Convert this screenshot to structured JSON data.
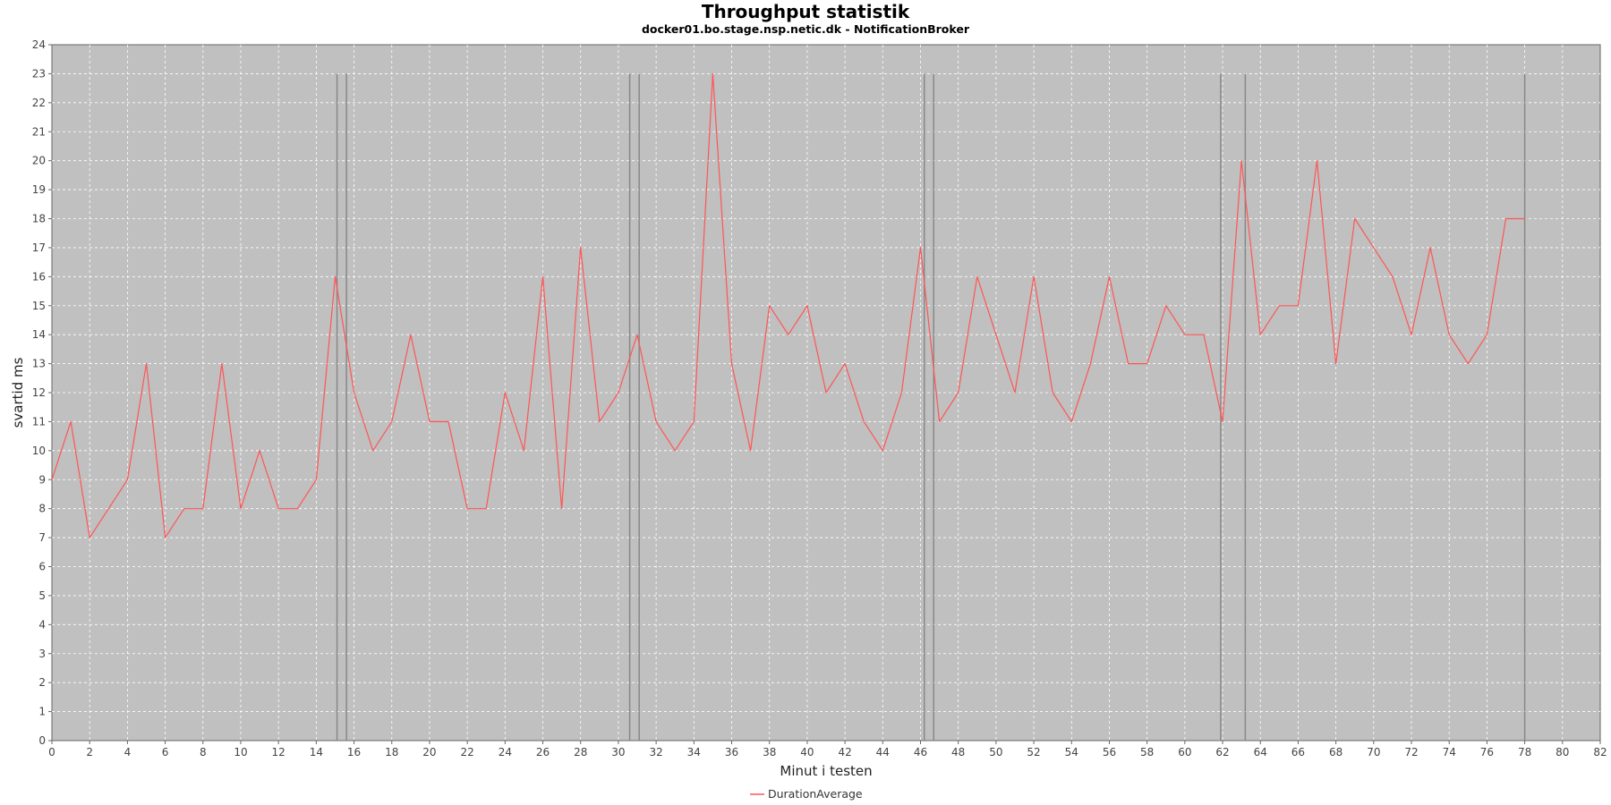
{
  "chart_data": {
    "type": "line",
    "title": "Throughput statistik",
    "subtitle": "docker01.bo.stage.nsp.netic.dk - NotificationBroker",
    "xlabel": "Minut i testen",
    "ylabel": "svartid ms",
    "xlim": [
      0,
      82
    ],
    "ylim": [
      0,
      24
    ],
    "xticks": [
      0,
      2,
      4,
      6,
      8,
      10,
      12,
      14,
      16,
      18,
      20,
      22,
      24,
      26,
      28,
      30,
      32,
      34,
      36,
      38,
      40,
      42,
      44,
      46,
      48,
      50,
      52,
      54,
      56,
      58,
      60,
      62,
      64,
      66,
      68,
      70,
      72,
      74,
      76,
      78,
      80,
      82
    ],
    "yticks": [
      0,
      1,
      2,
      3,
      4,
      5,
      6,
      7,
      8,
      9,
      10,
      11,
      12,
      13,
      14,
      15,
      16,
      17,
      18,
      19,
      20,
      21,
      22,
      23,
      24
    ],
    "grid": true,
    "background": "#c0c0c0",
    "series": [
      {
        "name": "DurationAverage",
        "color": "#ff5555",
        "x": [
          0,
          1,
          2,
          3,
          4,
          5,
          6,
          7,
          8,
          9,
          10,
          11,
          12,
          13,
          14,
          15,
          16,
          17,
          18,
          19,
          20,
          21,
          22,
          23,
          24,
          25,
          26,
          27,
          28,
          29,
          30,
          31,
          32,
          33,
          34,
          35,
          36,
          37,
          38,
          39,
          40,
          41,
          42,
          43,
          44,
          45,
          46,
          47,
          48,
          49,
          50,
          51,
          52,
          53,
          54,
          55,
          56,
          57,
          58,
          59,
          60,
          61,
          62,
          63,
          64,
          65,
          66,
          67,
          68,
          69,
          70,
          71,
          72,
          73,
          74,
          75,
          76,
          77,
          78
        ],
        "y": [
          9,
          11,
          7,
          8,
          9,
          13,
          7,
          8,
          8,
          13,
          8,
          10,
          8,
          8,
          9,
          16,
          12,
          10,
          11,
          14,
          11,
          11,
          8,
          8,
          12,
          10,
          16,
          8,
          17,
          11,
          12,
          14,
          11,
          10,
          11,
          23,
          13,
          10,
          15,
          14,
          15,
          12,
          13,
          11,
          10,
          12,
          17,
          11,
          12,
          16,
          14,
          12,
          16,
          12,
          11,
          13,
          16,
          13,
          13,
          15,
          14,
          14,
          11,
          20,
          14,
          15,
          15,
          20,
          13,
          18,
          17,
          16,
          14,
          17,
          14,
          13,
          14,
          18,
          18
        ]
      }
    ],
    "markers": {
      "color": "#888888",
      "x": [
        15.1,
        15.6,
        30.6,
        31.1,
        46.2,
        46.7,
        61.9,
        63.2,
        78.0
      ],
      "y_top": 23
    },
    "legend": {
      "position": "bottom-center"
    }
  }
}
